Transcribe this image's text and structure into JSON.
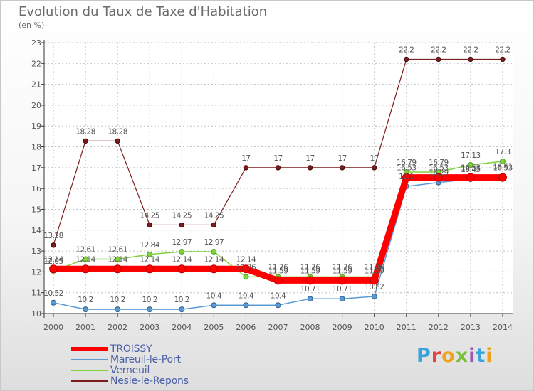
{
  "chart_data": {
    "type": "line",
    "title": "Evolution du Taux de Taxe d'Habitation",
    "subtitle": "(en %)",
    "x": [
      "2000",
      "2001",
      "2002",
      "2003",
      "2004",
      "2005",
      "2006",
      "2007",
      "2008",
      "2009",
      "2010",
      "2011",
      "2012",
      "2013",
      "2014"
    ],
    "ylim": [
      10,
      23
    ],
    "yticks": [
      "10",
      "11",
      "12",
      "13",
      "14",
      "15",
      "16",
      "17",
      "18",
      "19",
      "20",
      "21",
      "22",
      "23"
    ],
    "grid": true,
    "legend_position": "bottom-left",
    "series": [
      {
        "name": "TROISSY",
        "color": "#ff0000",
        "values": [
          12.14,
          12.14,
          12.14,
          12.14,
          12.14,
          12.14,
          12.14,
          11.59,
          11.59,
          11.59,
          11.59,
          16.53,
          16.53,
          16.53,
          16.53
        ],
        "labels": [
          "12.14",
          "12.14",
          "12.14",
          "12.14",
          "12.14",
          "12.14",
          "12.14",
          "11.59",
          "11.59",
          "11.59",
          "11.59",
          "16.53",
          "16.53",
          "16.53",
          "16.53"
        ]
      },
      {
        "name": "Mareuil-le-Port",
        "color": "#5b9bd5",
        "values": [
          10.52,
          10.2,
          10.2,
          10.2,
          10.2,
          10.4,
          10.4,
          10.4,
          10.71,
          10.71,
          10.82,
          16.1,
          16.29,
          16.45,
          16.61
        ],
        "labels": [
          "10.52",
          "10.2",
          "10.2",
          "10.2",
          "10.2",
          "10.4",
          "10.4",
          "10.4",
          "10.71",
          "10.71",
          "10.82",
          "16.1",
          "16.29",
          "16.45",
          "16.61"
        ]
      },
      {
        "name": "Verneuil",
        "color": "#7fd33b",
        "values": [
          12.05,
          12.61,
          12.61,
          12.84,
          12.97,
          12.97,
          11.76,
          11.76,
          11.76,
          11.76,
          11.76,
          16.79,
          16.79,
          17.13,
          17.3
        ],
        "labels": [
          "12.05",
          "12.61",
          "12.61",
          "12.84",
          "12.97",
          "12.97",
          "11.76",
          "11.76",
          "11.76",
          "11.76",
          "11.76",
          "16.79",
          "16.79",
          "17.13",
          "17.3"
        ]
      },
      {
        "name": "Nesle-le-Repons",
        "color": "#7b1d1d",
        "values": [
          13.28,
          18.28,
          18.28,
          14.25,
          14.25,
          14.25,
          17,
          17,
          17,
          17,
          17,
          22.2,
          22.2,
          22.2,
          22.2
        ],
        "labels": [
          "13.28",
          "18.28",
          "18.28",
          "14.25",
          "14.25",
          "14.25",
          "17",
          "17",
          "17",
          "17",
          "17",
          "22.2",
          "22.2",
          "22.2",
          "22.2"
        ]
      }
    ]
  },
  "brand": {
    "letters": [
      "P",
      "r",
      "o",
      "x",
      "i",
      "t",
      "i"
    ]
  }
}
